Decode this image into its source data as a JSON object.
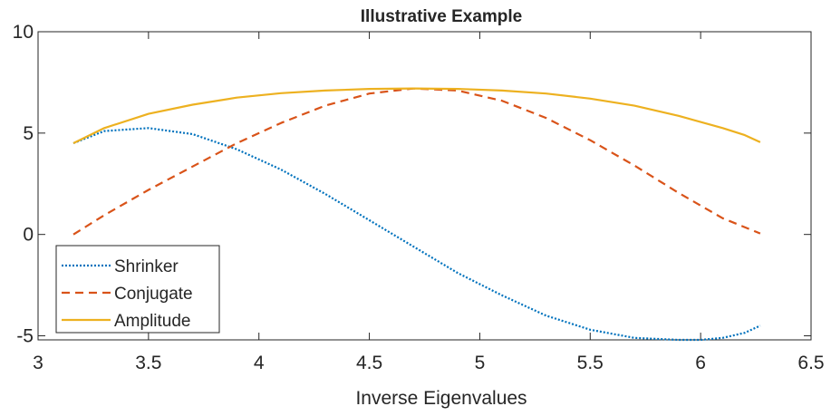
{
  "chart_data": {
    "type": "line",
    "title": "Illustrative Example",
    "xlabel": "Inverse Eigenvalues",
    "ylabel": "",
    "xlim": [
      3,
      6.5
    ],
    "ylim": [
      -5.2,
      10
    ],
    "xticks": [
      3,
      3.5,
      4,
      4.5,
      5,
      5.5,
      6,
      6.5
    ],
    "xtick_labels": [
      "3",
      "3.5",
      "4",
      "4.5",
      "5",
      "5.5",
      "6",
      "6.5"
    ],
    "yticks": [
      -5,
      0,
      5,
      10
    ],
    "ytick_labels": [
      "-5",
      "0",
      "5",
      "10"
    ],
    "grid": false,
    "legend_position": "bottom-left",
    "series": [
      {
        "name": "Shrinker",
        "style": "dotted",
        "color": "#0072BD",
        "x": [
          3.16,
          3.3,
          3.5,
          3.7,
          3.9,
          4.1,
          4.3,
          4.5,
          4.7,
          4.9,
          5.1,
          5.3,
          5.5,
          5.7,
          5.9,
          6.0,
          6.1,
          6.2,
          6.27
        ],
        "y": [
          4.5,
          5.1,
          5.25,
          4.95,
          4.2,
          3.2,
          2.0,
          0.7,
          -0.6,
          -1.9,
          -3.0,
          -4.0,
          -4.7,
          -5.1,
          -5.2,
          -5.2,
          -5.1,
          -4.85,
          -4.5
        ]
      },
      {
        "name": "Conjugate",
        "style": "dashed",
        "color": "#D95319",
        "x": [
          3.16,
          3.3,
          3.5,
          3.7,
          3.9,
          4.1,
          4.3,
          4.5,
          4.7,
          4.9,
          5.1,
          5.3,
          5.5,
          5.7,
          5.9,
          6.1,
          6.27
        ],
        "y": [
          0.0,
          0.95,
          2.2,
          3.35,
          4.5,
          5.5,
          6.35,
          6.95,
          7.2,
          7.1,
          6.6,
          5.75,
          4.65,
          3.4,
          2.05,
          0.8,
          0.05
        ]
      },
      {
        "name": "Amplitude",
        "style": "solid",
        "color": "#EDB120",
        "x": [
          3.16,
          3.3,
          3.5,
          3.7,
          3.9,
          4.1,
          4.3,
          4.5,
          4.7,
          4.9,
          5.1,
          5.3,
          5.5,
          5.7,
          5.9,
          6.1,
          6.2,
          6.27
        ],
        "y": [
          4.5,
          5.25,
          5.95,
          6.4,
          6.75,
          6.97,
          7.1,
          7.18,
          7.2,
          7.18,
          7.1,
          6.95,
          6.7,
          6.35,
          5.85,
          5.25,
          4.9,
          4.55
        ]
      }
    ]
  }
}
